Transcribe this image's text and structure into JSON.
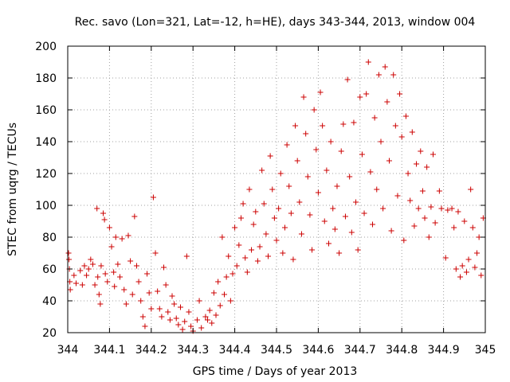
{
  "chart_data": {
    "type": "scatter",
    "title": "Rec. savo (Lon=321, Lat=-12, h=HE), days 343-344, 2013, window 004",
    "xlabel": "GPS time / Days of year 2013",
    "ylabel": "STEC from uqrg / TECUs",
    "xlim": [
      344,
      345
    ],
    "ylim": [
      20,
      200
    ],
    "xticks": [
      "344",
      "344.1",
      "344.2",
      "344.3",
      "344.4",
      "344.5",
      "344.6",
      "344.7",
      "344.8",
      "344.9",
      "345"
    ],
    "yticks": [
      "20",
      "40",
      "60",
      "80",
      "100",
      "120",
      "140",
      "160",
      "180",
      "200"
    ],
    "grid": true,
    "marker": "+",
    "color": "#cc0000",
    "series": [
      {
        "name": "",
        "points": [
          [
            344.002,
            70
          ],
          [
            344.003,
            66
          ],
          [
            344.004,
            60
          ],
          [
            344.005,
            52
          ],
          [
            344.006,
            47
          ],
          [
            344.015,
            56
          ],
          [
            344.02,
            51
          ],
          [
            344.03,
            59
          ],
          [
            344.035,
            50
          ],
          [
            344.04,
            62
          ],
          [
            344.045,
            56
          ],
          [
            344.05,
            60
          ],
          [
            344.055,
            66
          ],
          [
            344.06,
            63
          ],
          [
            344.065,
            50
          ],
          [
            344.07,
            98
          ],
          [
            344.072,
            55
          ],
          [
            344.075,
            44
          ],
          [
            344.078,
            38
          ],
          [
            344.08,
            62
          ],
          [
            344.085,
            95
          ],
          [
            344.088,
            91
          ],
          [
            344.09,
            57
          ],
          [
            344.095,
            52
          ],
          [
            344.1,
            86
          ],
          [
            344.105,
            74
          ],
          [
            344.11,
            58
          ],
          [
            344.112,
            49
          ],
          [
            344.115,
            80
          ],
          [
            344.12,
            63
          ],
          [
            344.125,
            55
          ],
          [
            344.13,
            79
          ],
          [
            344.135,
            47
          ],
          [
            344.14,
            38
          ],
          [
            344.145,
            81
          ],
          [
            344.15,
            65
          ],
          [
            344.155,
            44
          ],
          [
            344.16,
            93
          ],
          [
            344.165,
            62
          ],
          [
            344.17,
            52
          ],
          [
            344.175,
            40
          ],
          [
            344.18,
            30
          ],
          [
            344.185,
            24
          ],
          [
            344.19,
            57
          ],
          [
            344.195,
            45
          ],
          [
            344.2,
            35
          ],
          [
            344.205,
            105
          ],
          [
            344.21,
            70
          ],
          [
            344.215,
            46
          ],
          [
            344.22,
            35
          ],
          [
            344.225,
            30
          ],
          [
            344.23,
            61
          ],
          [
            344.235,
            50
          ],
          [
            344.24,
            33
          ],
          [
            344.245,
            28
          ],
          [
            344.25,
            43
          ],
          [
            344.255,
            38
          ],
          [
            344.26,
            29
          ],
          [
            344.265,
            25
          ],
          [
            344.27,
            36
          ],
          [
            344.275,
            22
          ],
          [
            344.28,
            27
          ],
          [
            344.285,
            68
          ],
          [
            344.29,
            33
          ],
          [
            344.295,
            24
          ],
          [
            344.3,
            21
          ],
          [
            344.31,
            28
          ],
          [
            344.315,
            40
          ],
          [
            344.32,
            23
          ],
          [
            344.33,
            30
          ],
          [
            344.335,
            28
          ],
          [
            344.34,
            34
          ],
          [
            344.345,
            26
          ],
          [
            344.35,
            45
          ],
          [
            344.355,
            31
          ],
          [
            344.36,
            52
          ],
          [
            344.365,
            37
          ],
          [
            344.37,
            80
          ],
          [
            344.375,
            44
          ],
          [
            344.38,
            55
          ],
          [
            344.385,
            68
          ],
          [
            344.39,
            40
          ],
          [
            344.395,
            57
          ],
          [
            344.4,
            86
          ],
          [
            344.405,
            62
          ],
          [
            344.41,
            75
          ],
          [
            344.415,
            92
          ],
          [
            344.42,
            101
          ],
          [
            344.425,
            67
          ],
          [
            344.43,
            58
          ],
          [
            344.435,
            110
          ],
          [
            344.44,
            72
          ],
          [
            344.445,
            88
          ],
          [
            344.45,
            96
          ],
          [
            344.455,
            65
          ],
          [
            344.46,
            74
          ],
          [
            344.465,
            122
          ],
          [
            344.47,
            101
          ],
          [
            344.475,
            82
          ],
          [
            344.48,
            68
          ],
          [
            344.485,
            131
          ],
          [
            344.49,
            110
          ],
          [
            344.495,
            92
          ],
          [
            344.5,
            78
          ],
          [
            344.505,
            98
          ],
          [
            344.51,
            120
          ],
          [
            344.515,
            70
          ],
          [
            344.52,
            86
          ],
          [
            344.525,
            138
          ],
          [
            344.53,
            112
          ],
          [
            344.535,
            95
          ],
          [
            344.54,
            66
          ],
          [
            344.545,
            150
          ],
          [
            344.55,
            128
          ],
          [
            344.555,
            102
          ],
          [
            344.56,
            82
          ],
          [
            344.565,
            168
          ],
          [
            344.57,
            145
          ],
          [
            344.575,
            118
          ],
          [
            344.58,
            94
          ],
          [
            344.585,
            72
          ],
          [
            344.59,
            160
          ],
          [
            344.595,
            135
          ],
          [
            344.6,
            108
          ],
          [
            344.605,
            171
          ],
          [
            344.61,
            150
          ],
          [
            344.615,
            90
          ],
          [
            344.62,
            122
          ],
          [
            344.625,
            76
          ],
          [
            344.63,
            140
          ],
          [
            344.635,
            98
          ],
          [
            344.64,
            85
          ],
          [
            344.645,
            112
          ],
          [
            344.65,
            70
          ],
          [
            344.655,
            134
          ],
          [
            344.66,
            151
          ],
          [
            344.665,
            93
          ],
          [
            344.67,
            179
          ],
          [
            344.675,
            118
          ],
          [
            344.68,
            83
          ],
          [
            344.685,
            152
          ],
          [
            344.69,
            102
          ],
          [
            344.695,
            72
          ],
          [
            344.7,
            168
          ],
          [
            344.705,
            132
          ],
          [
            344.71,
            95
          ],
          [
            344.715,
            170
          ],
          [
            344.72,
            190
          ],
          [
            344.725,
            121
          ],
          [
            344.73,
            88
          ],
          [
            344.735,
            155
          ],
          [
            344.74,
            110
          ],
          [
            344.745,
            182
          ],
          [
            344.75,
            140
          ],
          [
            344.755,
            98
          ],
          [
            344.76,
            187
          ],
          [
            344.765,
            165
          ],
          [
            344.77,
            128
          ],
          [
            344.775,
            84
          ],
          [
            344.78,
            182
          ],
          [
            344.785,
            150
          ],
          [
            344.79,
            106
          ],
          [
            344.795,
            170
          ],
          [
            344.8,
            143
          ],
          [
            344.805,
            78
          ],
          [
            344.81,
            156
          ],
          [
            344.815,
            120
          ],
          [
            344.82,
            103
          ],
          [
            344.825,
            146
          ],
          [
            344.83,
            87
          ],
          [
            344.835,
            126
          ],
          [
            344.84,
            98
          ],
          [
            344.845,
            134
          ],
          [
            344.85,
            109
          ],
          [
            344.855,
            92
          ],
          [
            344.86,
            124
          ],
          [
            344.865,
            80
          ],
          [
            344.87,
            99
          ],
          [
            344.875,
            132
          ],
          [
            344.88,
            89
          ],
          [
            344.89,
            109
          ],
          [
            344.895,
            98
          ],
          [
            344.905,
            67
          ],
          [
            344.91,
            97
          ],
          [
            344.92,
            98
          ],
          [
            344.925,
            86
          ],
          [
            344.93,
            60
          ],
          [
            344.935,
            96
          ],
          [
            344.94,
            55
          ],
          [
            344.945,
            62
          ],
          [
            344.95,
            90
          ],
          [
            344.955,
            58
          ],
          [
            344.96,
            66
          ],
          [
            344.965,
            110
          ],
          [
            344.97,
            86
          ],
          [
            344.975,
            61
          ],
          [
            344.98,
            70
          ],
          [
            344.985,
            80
          ],
          [
            344.99,
            56
          ],
          [
            344.995,
            92
          ]
        ]
      }
    ]
  }
}
